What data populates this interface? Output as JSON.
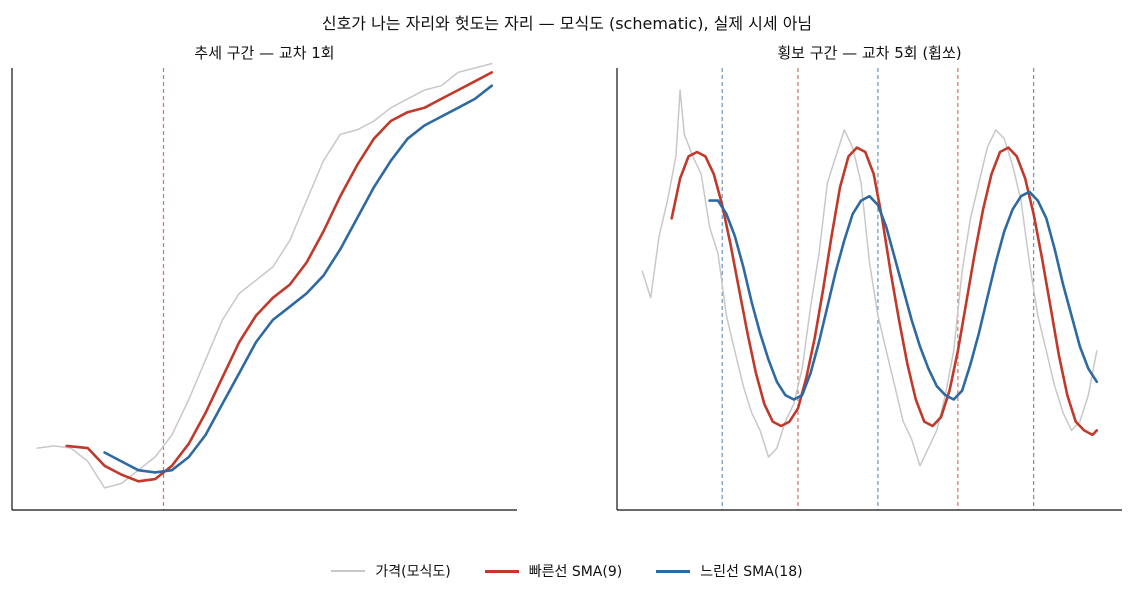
{
  "figure_title": "신호가 나는 자리와 헛도는 자리 — 모식도 (schematic), 실제 시세 아님",
  "colors": {
    "price": "#c8c8c8",
    "fast": "#c0392b",
    "slow": "#2e6aa1",
    "cross_up": "#c0392b",
    "cross_down": "#2e6aa1"
  },
  "legend": [
    {
      "key": "price",
      "label": "가격(모식도)"
    },
    {
      "key": "fast",
      "label": "빠른선 SMA(9)"
    },
    {
      "key": "slow",
      "label": "느린선 SMA(18)"
    }
  ],
  "chart_data": [
    {
      "type": "line",
      "title": "추세 구간 — 교차 1회",
      "xlim": [
        0,
        120
      ],
      "ylim": [
        0,
        100
      ],
      "grid": false,
      "crossings": [
        {
          "x": 36,
          "direction": "up"
        }
      ],
      "series": [
        {
          "key": "price",
          "x": [
            6,
            10,
            14,
            18,
            22,
            26,
            30,
            34,
            38,
            42,
            46,
            50,
            54,
            58,
            62,
            66,
            70,
            74,
            78,
            82,
            86,
            90,
            94,
            98,
            102,
            106,
            110,
            114
          ],
          "y": [
            14,
            14.5,
            14,
            11,
            5,
            6,
            9,
            12,
            17,
            25,
            34,
            43,
            49,
            52,
            55,
            61,
            70,
            79,
            85,
            86,
            88,
            91,
            93,
            95,
            96,
            99,
            100,
            101
          ]
        },
        {
          "key": "fast",
          "x": [
            13,
            18,
            22,
            26,
            30,
            34,
            38,
            42,
            46,
            50,
            54,
            58,
            62,
            66,
            70,
            74,
            78,
            82,
            86,
            90,
            94,
            98,
            102,
            106,
            110,
            114
          ],
          "y": [
            14.5,
            14,
            10,
            8,
            6.5,
            7,
            10,
            15,
            22,
            30,
            38,
            44,
            48,
            51,
            56,
            63,
            71,
            78,
            84,
            88,
            90,
            91,
            93,
            95,
            97,
            99
          ]
        },
        {
          "key": "slow",
          "x": [
            22,
            26,
            30,
            34,
            38,
            42,
            46,
            50,
            54,
            58,
            62,
            66,
            70,
            74,
            78,
            82,
            86,
            90,
            94,
            98,
            102,
            106,
            110,
            114
          ],
          "y": [
            13,
            11,
            9,
            8.5,
            9,
            12,
            17,
            24,
            31,
            38,
            43,
            46,
            49,
            53,
            59,
            66,
            73,
            79,
            84,
            87,
            89,
            91,
            93,
            96
          ]
        }
      ]
    },
    {
      "type": "line",
      "title": "횡보 구간 — 교차 5회 (휩쏘)",
      "xlim": [
        0,
        120
      ],
      "ylim": [
        0,
        100
      ],
      "grid": false,
      "crossings": [
        {
          "x": 25,
          "direction": "down"
        },
        {
          "x": 43,
          "direction": "up"
        },
        {
          "x": 62,
          "direction": "down"
        },
        {
          "x": 81,
          "direction": "up"
        },
        {
          "x": 99,
          "direction": "down"
        }
      ],
      "series": [
        {
          "key": "price",
          "x": [
            6,
            8,
            10,
            12,
            14,
            15,
            16,
            18,
            20,
            22,
            24,
            26,
            28,
            30,
            32,
            34,
            36,
            38,
            40,
            42,
            44,
            46,
            48,
            50,
            52,
            54,
            56,
            58,
            60,
            62,
            64,
            66,
            68,
            70,
            72,
            74,
            76,
            78,
            80,
            82,
            84,
            86,
            88,
            90,
            92,
            94,
            96,
            98,
            100,
            102,
            104,
            106,
            108,
            110,
            112,
            114
          ],
          "y": [
            54,
            48,
            62,
            70,
            80,
            95,
            85,
            80,
            76,
            64,
            58,
            44,
            36,
            28,
            22,
            18,
            12,
            14,
            20,
            24,
            32,
            46,
            58,
            74,
            80,
            86,
            82,
            74,
            56,
            44,
            36,
            28,
            20,
            16,
            10,
            14,
            18,
            26,
            36,
            54,
            66,
            74,
            82,
            86,
            84,
            78,
            70,
            56,
            44,
            36,
            28,
            22,
            18,
            20,
            26,
            36
          ]
        },
        {
          "key": "fast",
          "x": [
            13,
            15,
            17,
            19,
            21,
            23,
            25,
            27,
            29,
            31,
            33,
            35,
            37,
            39,
            41,
            43,
            45,
            47,
            49,
            51,
            53,
            55,
            57,
            59,
            61,
            63,
            65,
            67,
            69,
            71,
            73,
            75,
            77,
            79,
            81,
            83,
            85,
            87,
            89,
            91,
            93,
            95,
            97,
            99,
            101,
            103,
            105,
            107,
            109,
            111,
            113,
            114
          ],
          "y": [
            66,
            75,
            80,
            81,
            80,
            76,
            69,
            60,
            50,
            40,
            31,
            24,
            20,
            19,
            20,
            23,
            30,
            39,
            50,
            62,
            73,
            80,
            82,
            81,
            76,
            66,
            54,
            43,
            33,
            25,
            20,
            19,
            21,
            27,
            36,
            47,
            58,
            68,
            76,
            81,
            82,
            80,
            75,
            67,
            57,
            46,
            35,
            26,
            20,
            18,
            17,
            18
          ]
        },
        {
          "key": "slow",
          "x": [
            22,
            24,
            26,
            28,
            30,
            32,
            34,
            36,
            38,
            40,
            42,
            44,
            46,
            48,
            50,
            52,
            54,
            56,
            58,
            60,
            62,
            64,
            66,
            68,
            70,
            72,
            74,
            76,
            78,
            80,
            82,
            84,
            86,
            88,
            90,
            92,
            94,
            96,
            98,
            100,
            102,
            104,
            106,
            108,
            110,
            112,
            114
          ],
          "y": [
            70,
            70,
            67,
            62,
            55,
            47,
            40,
            34,
            29,
            26,
            25,
            26,
            31,
            38,
            46,
            54,
            61,
            67,
            70,
            71,
            69,
            64,
            57,
            50,
            43,
            37,
            32,
            28,
            26,
            25,
            27,
            33,
            40,
            48,
            56,
            63,
            68,
            71,
            72,
            70,
            66,
            59,
            51,
            44,
            37,
            32,
            29
          ]
        }
      ]
    }
  ]
}
